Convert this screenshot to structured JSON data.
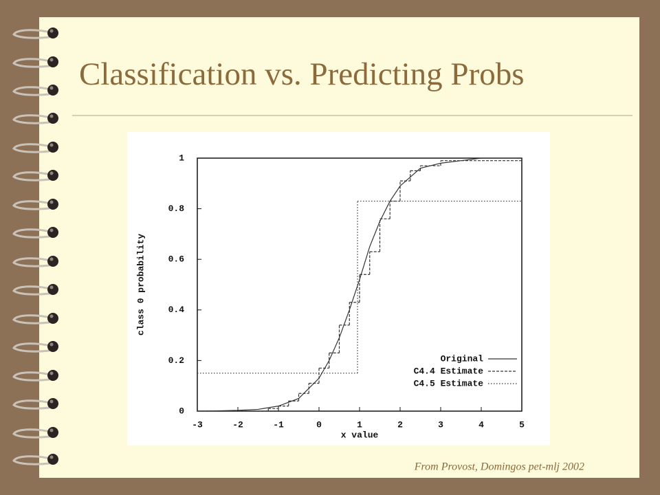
{
  "slide": {
    "title": "Classification vs. Predicting Probs",
    "caption": "From Provost, Domingos pet-mlj 2002"
  },
  "chart_data": {
    "type": "line",
    "x_label": "x value",
    "y_label": "class 0 probability",
    "xlim": [
      -3,
      5
    ],
    "ylim": [
      0,
      1
    ],
    "xticks": [
      -3,
      -2,
      -1,
      0,
      1,
      2,
      3,
      4,
      5
    ],
    "yticks": [
      0,
      0.2,
      0.4,
      0.6,
      0.8,
      1
    ],
    "legend": "lower right",
    "series": [
      {
        "name": "Original",
        "color": "#333333",
        "line_style": "solid",
        "drawstyle": "default",
        "x": [
          -3,
          -2.5,
          -2,
          -1.5,
          -1,
          -0.5,
          0,
          0.25,
          0.5,
          0.75,
          1,
          1.25,
          1.5,
          1.75,
          2,
          2.5,
          3,
          3.5,
          4,
          4.5,
          5
        ],
        "values": [
          0.0,
          0.001,
          0.003,
          0.007,
          0.02,
          0.05,
          0.13,
          0.2,
          0.29,
          0.4,
          0.52,
          0.65,
          0.75,
          0.83,
          0.89,
          0.96,
          0.98,
          0.99,
          1.0,
          1.0,
          1.0
        ]
      },
      {
        "name": "C4.4 Estimate",
        "color": "#333333",
        "line_style": "dashed",
        "drawstyle": "steps-post",
        "x": [
          -3,
          -1.25,
          -1,
          -0.75,
          -0.5,
          -0.25,
          0,
          0.25,
          0.5,
          0.75,
          1,
          1.25,
          1.5,
          1.75,
          2,
          2.25,
          2.5,
          3
        ],
        "values": [
          0.0,
          0.01,
          0.02,
          0.04,
          0.07,
          0.11,
          0.17,
          0.23,
          0.34,
          0.43,
          0.54,
          0.63,
          0.76,
          0.83,
          0.91,
          0.95,
          0.97,
          0.99
        ]
      },
      {
        "name": "C4.5 Estimate",
        "color": "#333333",
        "line_style": "dotted",
        "drawstyle": "steps-post",
        "x": [
          -3,
          0.95
        ],
        "values": [
          0.15,
          0.83
        ]
      }
    ]
  }
}
